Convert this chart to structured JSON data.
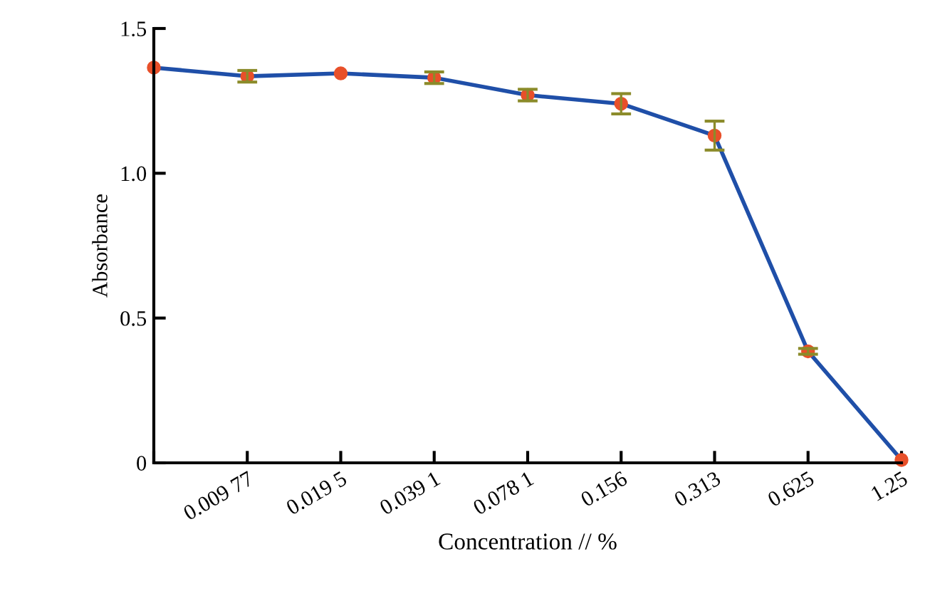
{
  "chart_data": {
    "type": "line",
    "xlabel": "Concentration // %",
    "ylabel": "Absorbance",
    "categories": [
      null,
      "0.009 77",
      "0.019 5",
      "0.039 1",
      "0.078 1",
      "0.156",
      "0.313",
      "0.625",
      "1.25"
    ],
    "series": [
      {
        "color": "#1f4fa8",
        "values": [
          1.365,
          1.335,
          1.345,
          1.33,
          1.27,
          1.24,
          1.13,
          0.385,
          0.01
        ],
        "errors": [
          null,
          0.02,
          null,
          0.02,
          0.02,
          0.035,
          0.05,
          0.01,
          null
        ]
      }
    ],
    "ylim": [
      0,
      1.5
    ],
    "yticks": [
      {
        "value": 0,
        "label": "0"
      },
      {
        "value": 0.5,
        "label": "0.5"
      },
      {
        "value": 1.0,
        "label": "1.0"
      },
      {
        "value": 1.5,
        "label": "1.5"
      }
    ],
    "marker": "circle",
    "line_style": "solid",
    "grid": false,
    "legend": false
  }
}
